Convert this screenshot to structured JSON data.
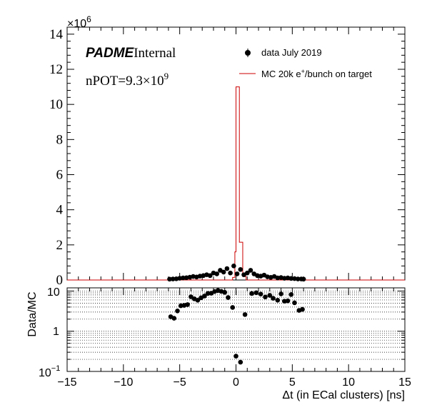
{
  "chart_data": [
    {
      "type": "histogram",
      "panel": "top",
      "x_range": [
        -15,
        15
      ],
      "ylim": [
        0,
        14.4
      ],
      "y_multiplier_label": "×10",
      "y_multiplier_exp": "6",
      "yticks": [
        0,
        2,
        4,
        6,
        8,
        10,
        12,
        14
      ],
      "title_bold": "PADME",
      "title_rest": "Internal",
      "annotation_main": "nPOT=9.3×10",
      "annotation_exp": "9",
      "legend": {
        "data_label": "data July 2019",
        "mc_label_pre": "MC 20k e",
        "mc_label_sup": "+",
        "mc_label_post": "/bunch on target",
        "placement": "top-right"
      },
      "mc_series": {
        "name": "MC 20k e+/bunch on target",
        "color": "#cc0000",
        "bins": [
          {
            "x0": -15,
            "x1": -0.3,
            "y": 0
          },
          {
            "x0": -0.3,
            "x1": -0.1,
            "y": 0.15
          },
          {
            "x0": -0.1,
            "x1": 0.0,
            "y": 1.6
          },
          {
            "x0": 0.0,
            "x1": 0.3,
            "y": 11.0
          },
          {
            "x0": 0.3,
            "x1": 0.6,
            "y": 2.15
          },
          {
            "x0": 0.6,
            "x1": 0.9,
            "y": 0.2
          },
          {
            "x0": 0.9,
            "x1": 15,
            "y": 0
          }
        ]
      },
      "data_series": {
        "name": "data July 2019",
        "color": "#000000",
        "x": [
          -5.9,
          -5.6,
          -5.3,
          -5.0,
          -4.7,
          -4.4,
          -4.1,
          -3.8,
          -3.5,
          -3.2,
          -2.9,
          -2.6,
          -2.3,
          -2.0,
          -1.7,
          -1.4,
          -1.1,
          -0.8,
          -0.5,
          -0.2,
          0.1,
          0.4,
          0.7,
          1.0,
          1.3,
          1.6,
          1.9,
          2.2,
          2.5,
          2.8,
          3.1,
          3.4,
          3.7,
          4.0,
          4.3,
          4.6,
          4.9,
          5.2,
          5.5,
          5.8,
          6.0
        ],
        "y": [
          0.05,
          0.06,
          0.07,
          0.1,
          0.12,
          0.13,
          0.16,
          0.2,
          0.17,
          0.22,
          0.25,
          0.3,
          0.25,
          0.4,
          0.35,
          0.55,
          0.45,
          0.65,
          0.4,
          0.8,
          0.35,
          0.6,
          0.3,
          0.4,
          0.55,
          0.35,
          0.25,
          0.22,
          0.28,
          0.18,
          0.15,
          0.2,
          0.12,
          0.14,
          0.1,
          0.12,
          0.09,
          0.08,
          0.06,
          0.06,
          0.05
        ]
      }
    },
    {
      "type": "scatter",
      "panel": "ratio",
      "ylabel": "Data/MC",
      "xlabel": "Δt (in ECal clusters) [ns]",
      "log_y": true,
      "ylim": [
        0.1,
        12
      ],
      "x_range": [
        -15,
        15
      ],
      "xticks": [
        -15,
        -10,
        -5,
        0,
        5,
        10,
        15
      ],
      "xtick_labels": [
        "−15",
        "−10",
        "−5",
        "0",
        "5",
        "10",
        "15"
      ],
      "ytick_labels": [
        {
          "v": 10,
          "main": "10",
          "sup": ""
        },
        {
          "v": 1,
          "main": "1",
          "sup": ""
        },
        {
          "v": 0.1,
          "main": "10",
          "sup": "−1"
        }
      ],
      "grid": true,
      "x": [
        -5.8,
        -5.5,
        -5.2,
        -4.9,
        -4.6,
        -4.3,
        -4.0,
        -3.7,
        -3.4,
        -3.1,
        -2.8,
        -2.5,
        -2.2,
        -1.9,
        -1.6,
        -1.3,
        -1.0,
        -0.7,
        -0.3,
        0.0,
        0.4,
        0.8,
        1.4,
        1.8,
        2.2,
        2.6,
        3.0,
        3.3,
        3.7,
        4.0,
        4.3,
        4.6,
        4.9,
        5.2,
        5.6,
        5.9
      ],
      "y": [
        2.3,
        2.1,
        3.2,
        4.3,
        4.4,
        4.6,
        7.2,
        6.4,
        5.9,
        6.8,
        7.5,
        8.7,
        8.8,
        9.7,
        10.3,
        9.8,
        9.3,
        6.9,
        3.9,
        0.24,
        0.17,
        2.6,
        8.7,
        9.1,
        8.4,
        7.1,
        7.8,
        6.6,
        5.9,
        8.5,
        5.6,
        5.7,
        8.2,
        5.1,
        3.3,
        3.5
      ]
    }
  ]
}
